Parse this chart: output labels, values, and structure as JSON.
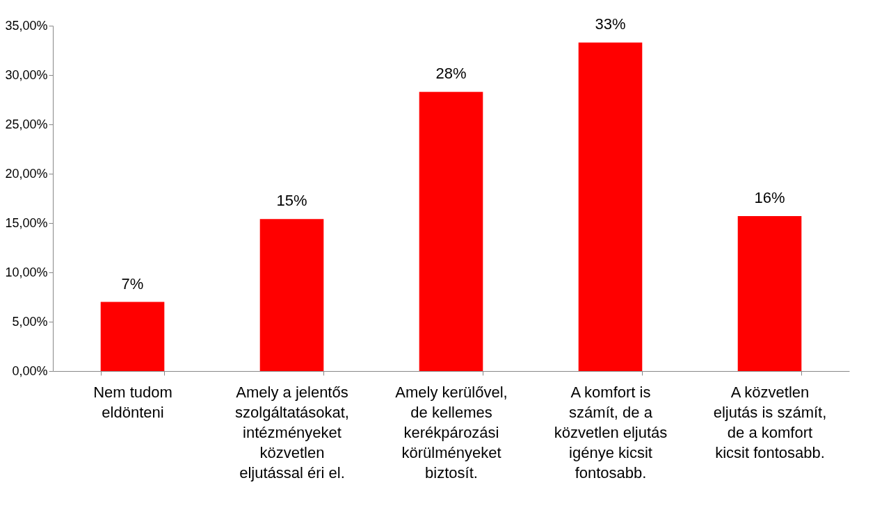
{
  "chart_data": {
    "type": "bar",
    "categories": [
      "Nem tudom eldönteni",
      "Amely a jelentős szolgáltatásokat, intézményeket közvetlen eljutással éri el.",
      "Amely kerülővel, de kellemes kerékpározási körülményeket biztosít.",
      "A komfort is számít, de a közvetlen eljutás igénye kicsit fontosabb.",
      "A közvetlen eljutás is számít, de a komfort kicsit fontosabb."
    ],
    "values": [
      7.0,
      15.4,
      28.3,
      33.3,
      15.7
    ],
    "value_labels": [
      "7%",
      "15%",
      "28%",
      "33%",
      "16%"
    ],
    "color": "#ff0000",
    "ylim": [
      0,
      35
    ],
    "yticks": [
      {
        "value": 0,
        "label": "0,00%"
      },
      {
        "value": 5,
        "label": "5,00%"
      },
      {
        "value": 10,
        "label": "10,00%"
      },
      {
        "value": 15,
        "label": "15,00%"
      },
      {
        "value": 20,
        "label": "20,00%"
      },
      {
        "value": 25,
        "label": "25,00%"
      },
      {
        "value": 30,
        "label": "30,00%"
      },
      {
        "value": 35,
        "label": "35,00%"
      }
    ],
    "grid": false
  }
}
